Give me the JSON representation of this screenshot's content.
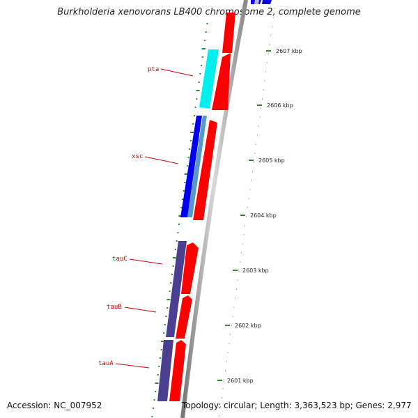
{
  "title": "Burkholderia xenovorans LB400 chromosome 2, complete genome",
  "footer": {
    "accession": "Accession: NC_007952",
    "summary": "Topology: circular; Length: 3,363,523 bp; Genes: 2,977"
  },
  "ticks": [
    "2601 kbp",
    "2602 kbp",
    "2603 kbp",
    "2604 kbp",
    "2605 kbp",
    "2606 kbp",
    "2607 kbp"
  ],
  "genes": [
    {
      "name": "pta"
    },
    {
      "name": "xsc"
    },
    {
      "name": "tauC"
    },
    {
      "name": "tauB"
    },
    {
      "name": "tauA"
    }
  ],
  "colors": {
    "cds_forward": "#ff0000",
    "cds_reverse_blue": "#0000ee",
    "cds_reverse_cyan": "#00eeee",
    "cds_reverse_slate": "#4b3f8f",
    "gc_marks": "#2e8b2e",
    "backbone": "#999999",
    "label": "#cc0000"
  }
}
